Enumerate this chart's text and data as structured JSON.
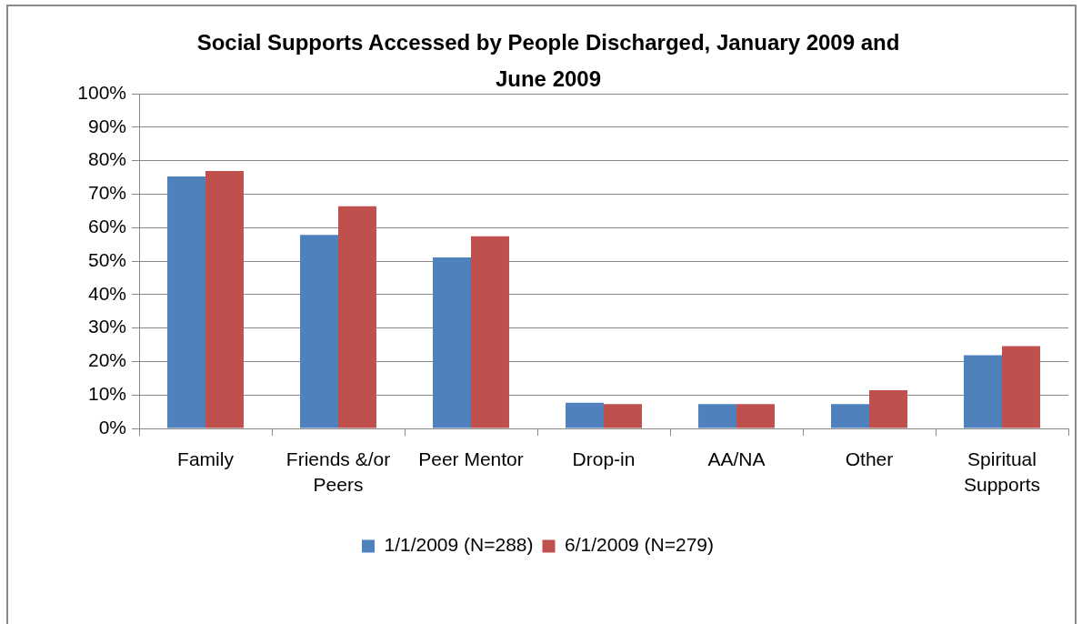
{
  "chart_data": {
    "type": "bar",
    "title": "Social Supports Accessed by People Discharged, January 2009 and June 2009",
    "categories": [
      "Family",
      "Friends &/or Peers",
      "Peer Mentor",
      "Drop-in",
      "AA/NA",
      "Other",
      "Spiritual Supports"
    ],
    "series": [
      {
        "name": "1/1/2009 (N=288)",
        "color": "#4f81bd",
        "values": [
          75.3,
          57.8,
          51.1,
          7.7,
          7.3,
          7.3,
          21.9
        ]
      },
      {
        "name": "6/1/2009 (N=279)",
        "color": "#c0504d",
        "values": [
          76.9,
          66.4,
          57.4,
          7.3,
          7.3,
          11.4,
          24.6
        ]
      }
    ],
    "ylim": [
      0,
      100
    ],
    "yticks": [
      {
        "value": 0,
        "label": "0%"
      },
      {
        "value": 10,
        "label": "10%"
      },
      {
        "value": 20,
        "label": "20%"
      },
      {
        "value": 30,
        "label": "30%"
      },
      {
        "value": 40,
        "label": "40%"
      },
      {
        "value": 50,
        "label": "50%"
      },
      {
        "value": 60,
        "label": "60%"
      },
      {
        "value": 70,
        "label": "70%"
      },
      {
        "value": 80,
        "label": "80%"
      },
      {
        "value": 90,
        "label": "90%"
      },
      {
        "value": 100,
        "label": "100%"
      }
    ],
    "grid": "y",
    "legend": "bottom"
  }
}
